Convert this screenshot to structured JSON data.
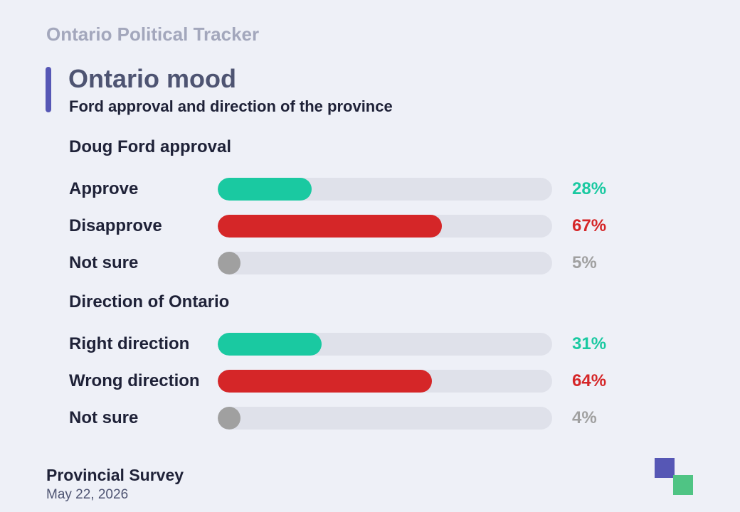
{
  "header": {
    "kicker": "Ontario Political Tracker",
    "title": "Ontario mood",
    "subtitle": "Ford approval and direction of the province"
  },
  "colors": {
    "accent": "#5657b5",
    "positive": "#1ac9a1",
    "negative": "#d52628",
    "neutral": "#a0a0a0",
    "track": "#dfe1ea"
  },
  "chart_data": [
    {
      "type": "bar",
      "orientation": "horizontal",
      "title": "Doug Ford approval",
      "categories": [
        "Approve",
        "Disapprove",
        "Not sure"
      ],
      "values": [
        28,
        67,
        5
      ],
      "value_labels": [
        "28%",
        "67%",
        "5%"
      ],
      "unit": "%",
      "xlim": [
        0,
        100
      ],
      "bar_colors": [
        "#1ac9a1",
        "#d52628",
        "#a0a0a0"
      ]
    },
    {
      "type": "bar",
      "orientation": "horizontal",
      "title": "Direction of Ontario",
      "categories": [
        "Right direction",
        "Wrong direction",
        "Not sure"
      ],
      "values": [
        31,
        64,
        4
      ],
      "value_labels": [
        "31%",
        "64%",
        "4%"
      ],
      "unit": "%",
      "xlim": [
        0,
        100
      ],
      "bar_colors": [
        "#1ac9a1",
        "#d52628",
        "#a0a0a0"
      ]
    }
  ],
  "footer": {
    "source": "Provincial Survey",
    "date": "May 22, 2026"
  }
}
